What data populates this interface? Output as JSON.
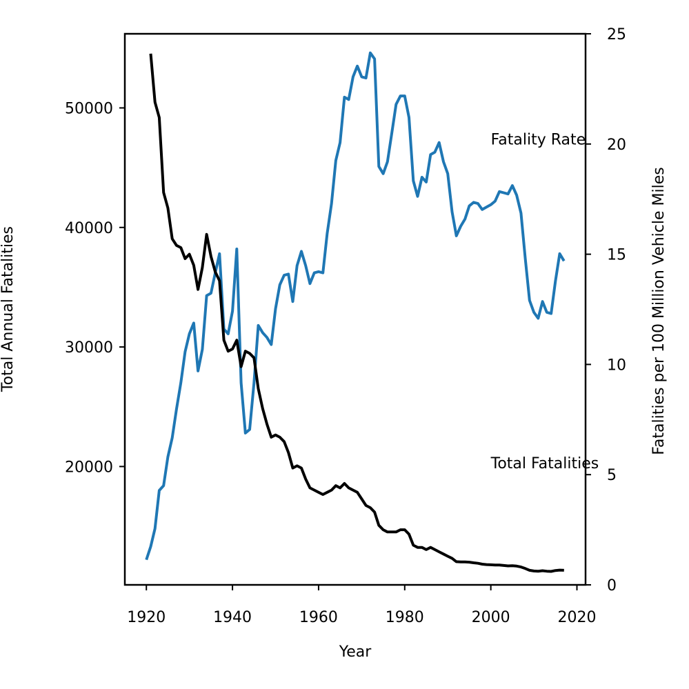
{
  "chart_data": {
    "type": "line",
    "title": "",
    "xlabel": "Year",
    "ylabel_left": "Total Annual Fatalities",
    "ylabel_right": "Fatalities per 100 Million Vehicle Miles",
    "xlim": [
      1915,
      2022
    ],
    "ylim_left": [
      10100,
      56200
    ],
    "ylim_right": [
      0,
      25
    ],
    "x_ticks": [
      1920,
      1940,
      1960,
      1980,
      2000,
      2020
    ],
    "y_ticks_left": [
      20000,
      30000,
      40000,
      50000
    ],
    "y_ticks_right": [
      0,
      5,
      10,
      15,
      20,
      25
    ],
    "grid": false,
    "annotations": [
      {
        "text": "Fatality Rate",
        "x": 2000,
        "y_left": 47400
      },
      {
        "text": "Total Fatalities",
        "x": 2000,
        "y_left": 20300
      }
    ],
    "series": [
      {
        "name": "Total Fatalities",
        "axis": "left",
        "color": "#1f77b4",
        "x": [
          1920,
          1921,
          1922,
          1923,
          1924,
          1925,
          1926,
          1927,
          1928,
          1929,
          1930,
          1931,
          1932,
          1933,
          1934,
          1935,
          1936,
          1937,
          1938,
          1939,
          1940,
          1941,
          1942,
          1943,
          1944,
          1945,
          1946,
          1947,
          1948,
          1949,
          1950,
          1951,
          1952,
          1953,
          1954,
          1955,
          1956,
          1957,
          1958,
          1959,
          1960,
          1961,
          1962,
          1963,
          1964,
          1965,
          1966,
          1967,
          1968,
          1969,
          1970,
          1971,
          1972,
          1973,
          1974,
          1975,
          1976,
          1977,
          1978,
          1979,
          1980,
          1981,
          1982,
          1983,
          1984,
          1985,
          1986,
          1987,
          1988,
          1989,
          1990,
          1991,
          1992,
          1993,
          1994,
          1995,
          1996,
          1997,
          1998,
          1999,
          2000,
          2001,
          2002,
          2003,
          2004,
          2005,
          2006,
          2007,
          2008,
          2009,
          2010,
          2011,
          2012,
          2013,
          2014,
          2015,
          2016,
          2017
        ],
        "values": [
          12200,
          13300,
          14800,
          18000,
          18400,
          20800,
          22400,
          24800,
          27000,
          29600,
          31100,
          32000,
          28000,
          29800,
          34300,
          34500,
          36200,
          37800,
          31500,
          31100,
          33000,
          38200,
          27000,
          22800,
          23100,
          27000,
          31800,
          31200,
          30800,
          30200,
          33200,
          35200,
          36000,
          36100,
          33800,
          36800,
          38000,
          36800,
          35300,
          36200,
          36300,
          36200,
          39500,
          42000,
          45600,
          47100,
          50900,
          50700,
          52600,
          53500,
          52600,
          52500,
          54600,
          54100,
          45100,
          44500,
          45500,
          47900,
          50300,
          51000,
          51000,
          49200,
          43900,
          42600,
          44200,
          43800,
          46100,
          46300,
          47100,
          45500,
          44500,
          41300,
          39300,
          40100,
          40700,
          41800,
          42100,
          42000,
          41500,
          41700,
          41900,
          42200,
          43000,
          42900,
          42800,
          43500,
          42700,
          41200,
          37400,
          33900,
          32900,
          32400,
          33800,
          32900,
          32800,
          35500,
          37800,
          37200
        ]
      },
      {
        "name": "Fatality Rate",
        "axis": "right",
        "color": "#000000",
        "x": [
          1921,
          1922,
          1923,
          1924,
          1925,
          1926,
          1927,
          1928,
          1929,
          1930,
          1931,
          1932,
          1933,
          1934,
          1935,
          1936,
          1937,
          1938,
          1939,
          1940,
          1941,
          1942,
          1943,
          1944,
          1945,
          1946,
          1947,
          1948,
          1949,
          1950,
          1951,
          1952,
          1953,
          1954,
          1955,
          1956,
          1957,
          1958,
          1959,
          1960,
          1961,
          1962,
          1963,
          1964,
          1965,
          1966,
          1967,
          1968,
          1969,
          1970,
          1971,
          1972,
          1973,
          1974,
          1975,
          1976,
          1977,
          1978,
          1979,
          1980,
          1981,
          1982,
          1983,
          1984,
          1985,
          1986,
          1987,
          1988,
          1989,
          1990,
          1991,
          1992,
          1993,
          1994,
          1995,
          1996,
          1997,
          1998,
          1999,
          2000,
          2001,
          2002,
          2003,
          2004,
          2005,
          2006,
          2007,
          2008,
          2009,
          2010,
          2011,
          2012,
          2013,
          2014,
          2015,
          2016,
          2017
        ],
        "values": [
          24.1,
          21.9,
          21.2,
          17.8,
          17.1,
          15.7,
          15.4,
          15.3,
          14.8,
          15.0,
          14.5,
          13.4,
          14.4,
          15.9,
          14.9,
          14.2,
          13.8,
          11.1,
          10.6,
          10.7,
          11.1,
          9.9,
          10.6,
          10.5,
          10.3,
          8.9,
          8.0,
          7.3,
          6.7,
          6.8,
          6.7,
          6.5,
          6.0,
          5.3,
          5.4,
          5.3,
          4.8,
          4.4,
          4.3,
          4.2,
          4.1,
          4.2,
          4.3,
          4.5,
          4.4,
          4.6,
          4.4,
          4.3,
          4.2,
          3.9,
          3.6,
          3.5,
          3.3,
          2.7,
          2.5,
          2.4,
          2.4,
          2.4,
          2.5,
          2.5,
          2.3,
          1.8,
          1.7,
          1.7,
          1.6,
          1.7,
          1.6,
          1.5,
          1.4,
          1.3,
          1.2,
          1.05,
          1.04,
          1.04,
          1.03,
          1.0,
          0.98,
          0.94,
          0.92,
          0.91,
          0.9,
          0.9,
          0.88,
          0.86,
          0.87,
          0.85,
          0.81,
          0.74,
          0.66,
          0.63,
          0.62,
          0.64,
          0.62,
          0.61,
          0.65,
          0.67,
          0.66
        ]
      }
    ]
  }
}
